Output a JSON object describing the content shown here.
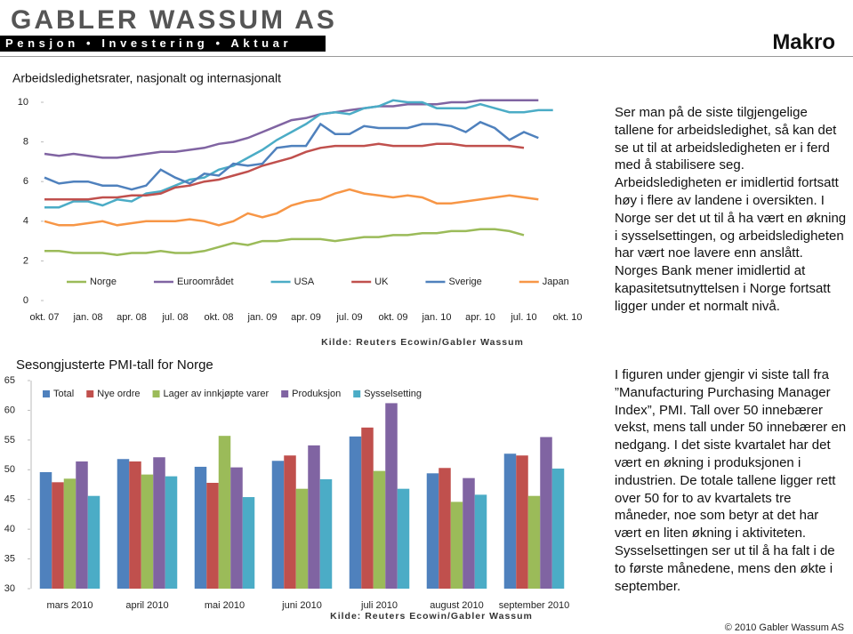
{
  "header": {
    "company": "GABLER WASSUM AS",
    "tagline": "Pensjon • Investering • Aktuar",
    "section": "Makro"
  },
  "chart_data": [
    {
      "type": "line",
      "title": "Arbeidsledighetsrater, nasjonalt og internasjonalt",
      "source": "Kilde: Reuters Ecowin/Gabler Wassum",
      "categories": [
        "okt. 07",
        null,
        null,
        "jan. 08",
        null,
        null,
        "apr. 08",
        null,
        null,
        "jul. 08",
        null,
        null,
        "okt. 08",
        null,
        null,
        "jan. 09",
        null,
        null,
        "apr. 09",
        null,
        null,
        "jul. 09",
        null,
        null,
        "okt. 09",
        null,
        null,
        "jan. 10",
        null,
        null,
        "apr. 10",
        null,
        null,
        "jul. 10",
        null,
        null,
        "okt. 10"
      ],
      "ylim": [
        0,
        10
      ],
      "yticks": [
        0,
        2,
        4,
        6,
        8,
        10
      ],
      "grid": false,
      "series": [
        {
          "name": "Norge",
          "color": "#9bbb59",
          "values": [
            2.5,
            2.5,
            2.4,
            2.4,
            2.4,
            2.3,
            2.4,
            2.4,
            2.5,
            2.4,
            2.4,
            2.5,
            2.7,
            2.9,
            2.8,
            3.0,
            3.0,
            3.1,
            3.1,
            3.1,
            3.0,
            3.1,
            3.2,
            3.2,
            3.3,
            3.3,
            3.4,
            3.4,
            3.5,
            3.5,
            3.6,
            3.6,
            3.5,
            3.3,
            null,
            null,
            null
          ]
        },
        {
          "name": "Euroområdet",
          "color": "#8064a2",
          "values": [
            7.4,
            7.3,
            7.4,
            7.3,
            7.2,
            7.2,
            7.3,
            7.4,
            7.5,
            7.5,
            7.6,
            7.7,
            7.9,
            8.0,
            8.2,
            8.5,
            8.8,
            9.1,
            9.2,
            9.4,
            9.5,
            9.6,
            9.7,
            9.8,
            9.8,
            9.9,
            9.9,
            9.9,
            10.0,
            10.0,
            10.1,
            10.1,
            10.1,
            10.1,
            10.1,
            null,
            null
          ]
        },
        {
          "name": "USA",
          "color": "#4bacc6",
          "values": [
            4.7,
            4.7,
            5.0,
            5.0,
            4.8,
            5.1,
            5.0,
            5.4,
            5.5,
            5.8,
            6.1,
            6.2,
            6.6,
            6.8,
            7.2,
            7.6,
            8.1,
            8.5,
            8.9,
            9.4,
            9.5,
            9.4,
            9.7,
            9.8,
            10.1,
            10.0,
            10.0,
            9.7,
            9.7,
            9.7,
            9.9,
            9.7,
            9.5,
            9.5,
            9.6,
            9.6,
            null
          ]
        },
        {
          "name": "UK",
          "color": "#c0504d",
          "values": [
            5.1,
            5.1,
            5.1,
            5.1,
            5.2,
            5.2,
            5.3,
            5.3,
            5.4,
            5.7,
            5.8,
            6.0,
            6.1,
            6.3,
            6.5,
            6.8,
            7.0,
            7.2,
            7.5,
            7.7,
            7.8,
            7.8,
            7.8,
            7.9,
            7.8,
            7.8,
            7.8,
            7.9,
            7.9,
            7.8,
            7.8,
            7.8,
            7.8,
            7.7,
            null,
            null,
            null
          ]
        },
        {
          "name": "Sverige",
          "color": "#4f81bd",
          "values": [
            6.2,
            5.9,
            6.0,
            6.0,
            5.8,
            5.8,
            5.6,
            5.8,
            6.6,
            6.2,
            5.9,
            6.4,
            6.3,
            6.9,
            6.8,
            6.9,
            7.7,
            7.8,
            7.8,
            8.9,
            8.4,
            8.4,
            8.8,
            8.7,
            8.7,
            8.7,
            8.9,
            8.9,
            8.8,
            8.5,
            9.0,
            8.7,
            8.1,
            8.5,
            8.2,
            null,
            null
          ]
        },
        {
          "name": "Japan",
          "color": "#f79646",
          "values": [
            4.0,
            3.8,
            3.8,
            3.9,
            4.0,
            3.8,
            3.9,
            4.0,
            4.0,
            4.0,
            4.1,
            4.0,
            3.8,
            4.0,
            4.4,
            4.2,
            4.4,
            4.8,
            5.0,
            5.1,
            5.4,
            5.6,
            5.4,
            5.3,
            5.2,
            5.3,
            5.2,
            4.9,
            4.9,
            5.0,
            5.1,
            5.2,
            5.3,
            5.2,
            5.1,
            null,
            null
          ]
        }
      ]
    },
    {
      "type": "bar",
      "title": "Sesongjusterte PMI-tall for Norge",
      "source": "Kilde: Reuters Ecowin/Gabler Wassum",
      "categories": [
        "mars 2010",
        "april 2010",
        "mai 2010",
        "juni 2010",
        "juli 2010",
        "august 2010",
        "september 2010"
      ],
      "ylim": [
        30,
        65
      ],
      "yticks": [
        30,
        35,
        40,
        45,
        50,
        55,
        60,
        65
      ],
      "grid": false,
      "series": [
        {
          "name": "Total",
          "color": "#4f81bd",
          "values": [
            49.6,
            51.8,
            50.5,
            51.5,
            55.6,
            49.4,
            52.7
          ]
        },
        {
          "name": "Nye ordre",
          "color": "#c0504d",
          "values": [
            47.9,
            51.4,
            47.8,
            52.4,
            57.1,
            50.3,
            52.4
          ]
        },
        {
          "name": "Lager av innkjøpte varer",
          "color": "#9bbb59",
          "values": [
            48.5,
            49.2,
            55.7,
            46.8,
            49.8,
            44.6,
            45.6
          ]
        },
        {
          "name": "Produksjon",
          "color": "#8064a2",
          "values": [
            51.4,
            52.1,
            50.4,
            54.1,
            61.2,
            48.6,
            55.5
          ]
        },
        {
          "name": "Sysselsetting",
          "color": "#4bacc6",
          "values": [
            45.6,
            48.9,
            45.4,
            48.4,
            46.8,
            45.8,
            50.2
          ]
        }
      ]
    }
  ],
  "text": {
    "paragraphs": [
      "Ser man på de siste tilgjengelige tallene for arbeidsledighet, så kan det se ut til at arbeidsledigheten er i ferd med å stabilisere seg. Arbeidsledigheten er imidlertid fortsatt høy i flere av landene i oversikten. I Norge ser det ut til å ha vært en økning i sysselsettingen, og arbeidsledigheten har vært noe lavere enn anslått. Norges Bank mener imidlertid at kapasitetsutnyttelsen i Norge fortsatt ligger under et normalt nivå.",
      "I figuren under gjengir vi siste tall fra ”Manufacturing Purchasing Manager Index”, PMI. Tall over 50 innebærer vekst, mens tall under 50 innebærer en nedgang. I det siste kvartalet har det vært en økning i produksjonen i industrien. De totale tallene ligger rett over 50 for to av kvartalets tre måneder, noe som betyr at det har vært en liten økning i aktiviteten. Sysselsettingen ser ut til å ha falt i de to første månedene, mens den økte i september."
    ]
  },
  "footer": "© 2010 Gabler Wassum AS"
}
